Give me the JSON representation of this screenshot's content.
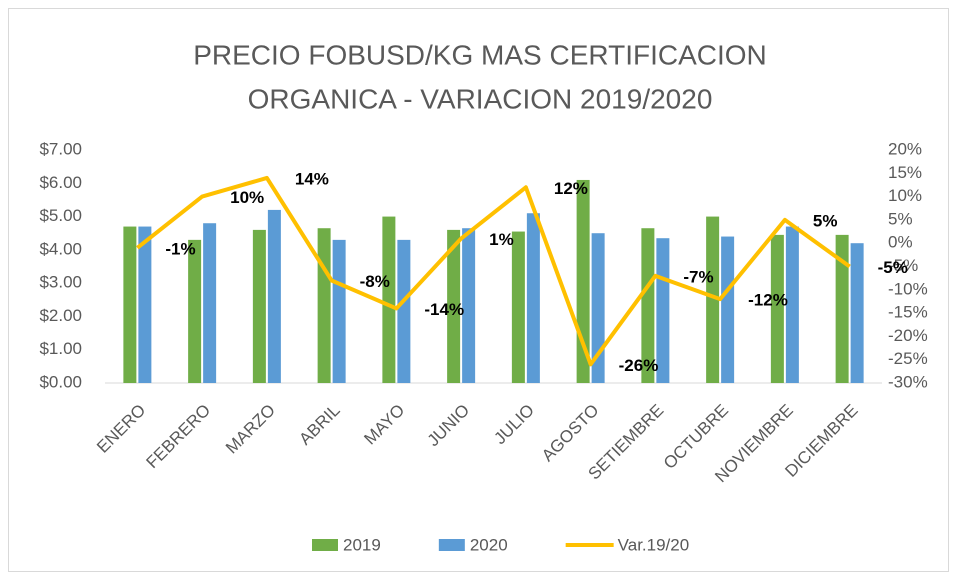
{
  "chart_data": {
    "type": "bar",
    "title": [
      "PRECIO FOBUSD/KG MAS CERTIFICACION",
      "ORGANICA - VARIACION 2019/2020"
    ],
    "categories": [
      "ENERO",
      "FEBRERO",
      "MARZO",
      "ABRIL",
      "MAYO",
      "JUNIO",
      "JULIO",
      "AGOSTO",
      "SETIEMBRE",
      "OCTUBRE",
      "NOVIEMBRE",
      "DICIEMBRE"
    ],
    "series": [
      {
        "name": "2019",
        "color": "#70ad47",
        "values": [
          4.7,
          4.3,
          4.6,
          4.65,
          5.0,
          4.6,
          4.55,
          6.1,
          4.65,
          5.0,
          4.45,
          4.45
        ]
      },
      {
        "name": "2020",
        "color": "#5b9bd5",
        "values": [
          4.7,
          4.8,
          5.2,
          4.3,
          4.3,
          4.65,
          5.1,
          4.5,
          4.35,
          4.4,
          4.7,
          4.2
        ]
      },
      {
        "name": "Var.19/20",
        "color": "#ffc000",
        "type": "line",
        "axis": "y2",
        "values": [
          -1,
          10,
          14,
          -8,
          -14,
          1,
          12,
          -26,
          -7,
          -12,
          5,
          -5
        ],
        "value_labels": [
          "-1%",
          "10%",
          "14%",
          "-8%",
          "-14%",
          "1%",
          "12%",
          "-26%",
          "-7%",
          "-12%",
          "5%",
          "-5%"
        ]
      }
    ],
    "ylim": [
      0,
      7
    ],
    "yticks": [
      {
        "value": 0,
        "label": "$0.00"
      },
      {
        "value": 1,
        "label": "$1.00"
      },
      {
        "value": 2,
        "label": "$2.00"
      },
      {
        "value": 3,
        "label": "$3.00"
      },
      {
        "value": 4,
        "label": "$4.00"
      },
      {
        "value": 5,
        "label": "$5.00"
      },
      {
        "value": 6,
        "label": "$6.00"
      },
      {
        "value": 7,
        "label": "$7.00"
      }
    ],
    "y2lim": [
      -30,
      20
    ],
    "y2ticks": [
      {
        "value": -30,
        "label": "-30%"
      },
      {
        "value": -25,
        "label": "-25%"
      },
      {
        "value": -20,
        "label": "-20%"
      },
      {
        "value": -15,
        "label": "-15%"
      },
      {
        "value": -10,
        "label": "-10%"
      },
      {
        "value": -5,
        "label": "-5%"
      },
      {
        "value": 0,
        "label": "0%"
      },
      {
        "value": 5,
        "label": "5%"
      },
      {
        "value": 10,
        "label": "10%"
      },
      {
        "value": 15,
        "label": "15%"
      },
      {
        "value": 20,
        "label": "20%"
      }
    ],
    "grid": false,
    "legend": "bottom"
  }
}
